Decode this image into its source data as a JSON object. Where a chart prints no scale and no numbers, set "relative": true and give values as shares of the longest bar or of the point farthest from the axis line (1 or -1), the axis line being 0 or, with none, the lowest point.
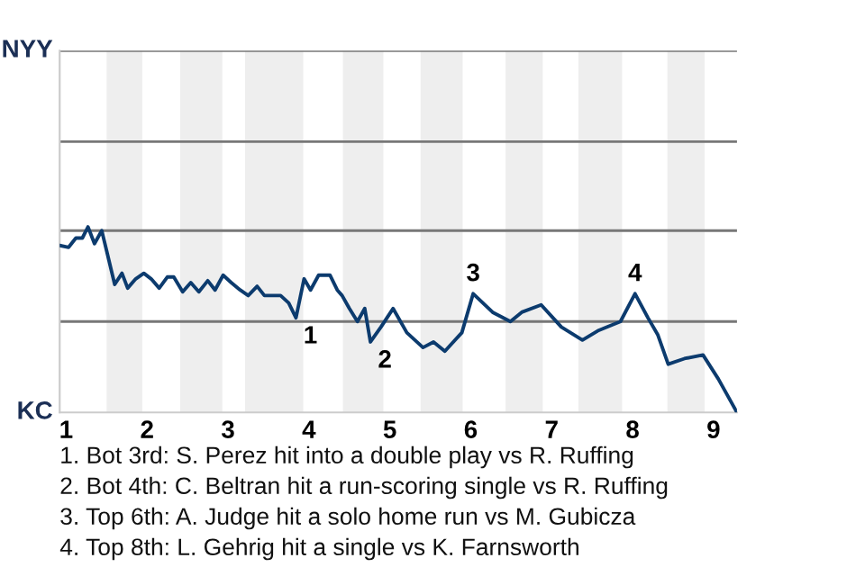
{
  "chart_data": {
    "type": "line",
    "relative": true,
    "x": [
      0.92,
      1.03,
      1.12,
      1.2,
      1.27,
      1.35,
      1.44,
      1.6,
      1.69,
      1.76,
      1.86,
      1.96,
      2.05,
      2.15,
      2.25,
      2.33,
      2.44,
      2.54,
      2.64,
      2.75,
      2.84,
      2.94,
      3.04,
      3.15,
      3.25,
      3.36,
      3.45,
      3.65,
      3.75,
      3.84,
      3.94,
      4.02,
      4.12,
      4.26,
      4.35,
      4.41,
      4.5,
      4.6,
      4.69,
      4.76,
      4.89,
      5.04,
      5.21,
      5.41,
      5.54,
      5.68,
      5.89,
      6.03,
      6.27,
      6.49,
      6.63,
      6.87,
      7.12,
      7.38,
      7.57,
      7.85,
      8.03,
      8.19,
      8.31,
      8.44,
      8.64,
      8.87,
      9.06,
      9.29
    ],
    "series": [
      {
        "color": "#0c3b6e",
        "values": [
          0.9,
          0.89,
          0.94,
          0.94,
          1,
          0.91,
          0.98,
          0.69,
          0.75,
          0.67,
          0.72,
          0.75,
          0.72,
          0.67,
          0.73,
          0.73,
          0.65,
          0.7,
          0.65,
          0.71,
          0.66,
          0.74,
          0.7,
          0.66,
          0.63,
          0.68,
          0.63,
          0.63,
          0.59,
          0.51,
          0.72,
          0.66,
          0.74,
          0.74,
          0.66,
          0.63,
          0.56,
          0.49,
          0.56,
          0.38,
          0.46,
          0.56,
          0.43,
          0.35,
          0.38,
          0.33,
          0.43,
          0.64,
          0.54,
          0.49,
          0.54,
          0.58,
          0.46,
          0.39,
          0.44,
          0.49,
          0.64,
          0.51,
          0.42,
          0.26,
          0.29,
          0.31,
          0.18,
          0
        ]
      }
    ],
    "xlim": [
      0.92,
      9.29
    ],
    "xticks": [
      1,
      2,
      3,
      4,
      5,
      6,
      7,
      8,
      9
    ],
    "ref_lines": [
      {
        "axis": "y",
        "value": 0.49,
        "color": "#777777"
      },
      {
        "axis": "y",
        "value": 0.98,
        "color": "#777777"
      },
      {
        "axis": "y",
        "value": 1.46,
        "color": "#777777"
      },
      {
        "axis": "y",
        "value": 1.95,
        "color": "#777777"
      }
    ],
    "bands": [
      {
        "axis": "x",
        "from": 1.5,
        "to": 1.94,
        "color": "#eeeeee"
      },
      {
        "axis": "x",
        "from": 2.41,
        "to": 2.93,
        "color": "#eeeeee"
      },
      {
        "axis": "x",
        "from": 3.21,
        "to": 3.93,
        "color": "#eeeeee"
      },
      {
        "axis": "x",
        "from": 4.42,
        "to": 4.92,
        "color": "#eeeeee"
      },
      {
        "axis": "x",
        "from": 5.38,
        "to": 5.9,
        "color": "#eeeeee"
      },
      {
        "axis": "x",
        "from": 6.43,
        "to": 6.89,
        "color": "#eeeeee"
      },
      {
        "axis": "x",
        "from": 7.33,
        "to": 7.87,
        "color": "#eeeeee"
      },
      {
        "axis": "x",
        "from": 8.43,
        "to": 8.89,
        "color": "#eeeeee"
      }
    ],
    "annotations": [
      "NYY",
      "KC",
      {
        "text": "1",
        "x": 3.84,
        "y": 0.51
      },
      {
        "text": "2",
        "x": 4.76,
        "y": 0.38
      },
      {
        "text": "3",
        "x": 6.03,
        "y": 0.64
      },
      {
        "text": "4",
        "x": 8.03,
        "y": 0.64
      },
      "1. Bot 3rd: S. Perez hit into a double play vs R. Ruffing",
      "2. Bot 4th: C. Beltran hit a run-scoring single vs R. Ruffing",
      "3. Top 6th: A. Judge hit a solo home run vs M. Gubicza",
      "4. Top 8th: L. Gehrig hit a single vs K. Farnsworth"
    ]
  }
}
